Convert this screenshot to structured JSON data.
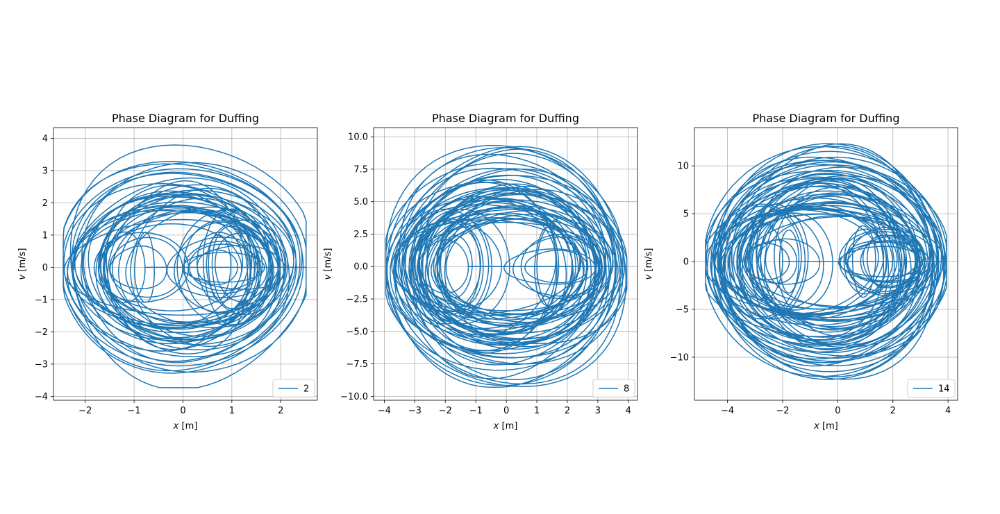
{
  "chart_data": [
    {
      "type": "line",
      "title": "Phase Diagram for Duffing",
      "xlabel_var": "x",
      "xlabel_unit": "[m]",
      "ylabel_var": "v",
      "ylabel_unit": "[m/s]",
      "xlim": [
        -2.65,
        2.75
      ],
      "ylim": [
        -4.12,
        4.33
      ],
      "xticks": [
        -2,
        -1,
        0,
        1,
        2
      ],
      "xtick_labels": [
        "−2",
        "−1",
        "0",
        "1",
        "2"
      ],
      "yticks": [
        -4,
        -3,
        -2,
        -1,
        0,
        1,
        2,
        3,
        4
      ],
      "ytick_labels": [
        "−4",
        "−3",
        "−2",
        "−1",
        "0",
        "1",
        "2",
        "3",
        "4"
      ],
      "grid": true,
      "legend_position": "lower-right",
      "color": "#1f77b4",
      "series": [
        {
          "name": "2",
          "description_values": {
            "x_range": [
              -2.45,
              2.52
            ],
            "v_range": [
              -3.73,
              3.94
            ],
            "wells_x": [
              -1,
              1
            ]
          }
        }
      ]
    },
    {
      "type": "line",
      "title": "Phase Diagram for Duffing",
      "xlabel_var": "x",
      "xlabel_unit": "[m]",
      "ylabel_var": "v",
      "ylabel_unit": "[m/s]",
      "xlim": [
        -4.35,
        4.3
      ],
      "ylim": [
        -10.3,
        10.7
      ],
      "xticks": [
        -4,
        -3,
        -2,
        -1,
        0,
        1,
        2,
        3,
        4
      ],
      "xtick_labels": [
        "−4",
        "−3",
        "−2",
        "−1",
        "0",
        "1",
        "2",
        "3",
        "4"
      ],
      "yticks": [
        -10,
        -7.5,
        -5,
        -2.5,
        0,
        2.5,
        5,
        7.5,
        10
      ],
      "ytick_labels": [
        "−10.0",
        "−7.5",
        "−5.0",
        "−2.5",
        "0.0",
        "2.5",
        "5.0",
        "7.5",
        "10.0"
      ],
      "grid": true,
      "legend_position": "lower-right",
      "color": "#1f77b4",
      "series": [
        {
          "name": "8",
          "description_values": {
            "x_range": [
              -3.95,
              3.95
            ],
            "v_range": [
              -9.3,
              9.8
            ]
          }
        }
      ]
    },
    {
      "type": "line",
      "title": "Phase Diagram for Duffing",
      "xlabel_var": "x",
      "xlabel_unit": "[m]",
      "ylabel_var": "v",
      "ylabel_unit": "[m/s]",
      "xlim": [
        -5.2,
        4.35
      ],
      "ylim": [
        -14.5,
        14.0
      ],
      "xticks": [
        -4,
        -2,
        0,
        2,
        4
      ],
      "xtick_labels": [
        "−4",
        "−2",
        "0",
        "2",
        "4"
      ],
      "yticks": [
        -10,
        -5,
        0,
        5,
        10
      ],
      "ytick_labels": [
        "−10",
        "−5",
        "0",
        "5",
        "10"
      ],
      "grid": true,
      "legend_position": "lower-right",
      "color": "#1f77b4",
      "series": [
        {
          "name": "14",
          "description_values": {
            "x_range": [
              -4.8,
              3.95
            ],
            "v_range": [
              -13.3,
              12.9
            ]
          }
        }
      ]
    }
  ]
}
